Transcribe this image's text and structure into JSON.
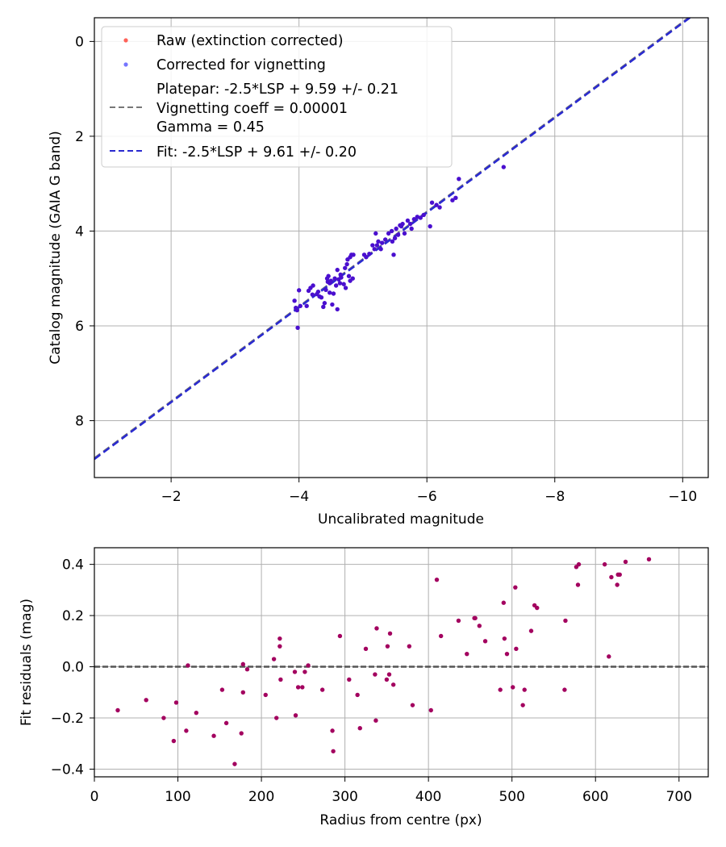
{
  "chart_data": [
    {
      "type": "scatter",
      "xlabel": "Uncalibrated magnitude",
      "ylabel": "Catalog magnitude (GAIA G band)",
      "xlim": [
        -0.8,
        -10.4
      ],
      "ylim": [
        9.2,
        -0.5
      ],
      "xticks": [
        -2,
        -4,
        -6,
        -8,
        -10
      ],
      "xtick_labels": [
        "−2",
        "−4",
        "−6",
        "−8",
        "−10"
      ],
      "yticks": [
        0,
        2,
        4,
        6,
        8
      ],
      "ytick_labels": [
        "0",
        "2",
        "4",
        "6",
        "8"
      ],
      "grid": true,
      "legend_position": "top-left",
      "legend": {
        "raw": "Raw (extinction corrected)",
        "vignetting": "Corrected for vignetting",
        "platepar_line1": "Platepar: -2.5*LSP + 9.59 +/- 0.21",
        "platepar_line2": "Vignetting coeff = 0.00001",
        "platepar_line3": "Gamma = 0.45",
        "fit": "Fit: -2.5*LSP + 9.61 +/- 0.20"
      },
      "series": [
        {
          "name": "Corrected for vignetting",
          "color": "#4a0fcf",
          "points": [
            [
              -3.93,
              5.47
            ],
            [
              -3.95,
              5.62
            ],
            [
              -3.97,
              5.67
            ],
            [
              -3.98,
              6.04
            ],
            [
              -4.0,
              5.25
            ],
            [
              -4.02,
              5.58
            ],
            [
              -4.12,
              5.58
            ],
            [
              -4.15,
              5.26
            ],
            [
              -4.18,
              5.2
            ],
            [
              -4.21,
              5.34
            ],
            [
              -4.22,
              5.15
            ],
            [
              -4.28,
              5.33
            ],
            [
              -4.3,
              5.28
            ],
            [
              -4.32,
              5.38
            ],
            [
              -4.35,
              5.4
            ],
            [
              -4.38,
              5.6
            ],
            [
              -4.4,
              5.52
            ],
            [
              -4.42,
              5.24
            ],
            [
              -4.44,
              5.0
            ],
            [
              -4.45,
              5.07
            ],
            [
              -4.46,
              4.95
            ],
            [
              -4.48,
              5.3
            ],
            [
              -4.48,
              5.1
            ],
            [
              -4.5,
              5.05
            ],
            [
              -4.52,
              5.55
            ],
            [
              -4.54,
              5.32
            ],
            [
              -4.56,
              5.0
            ],
            [
              -4.58,
              5.15
            ],
            [
              -4.6,
              4.82
            ],
            [
              -4.6,
              5.65
            ],
            [
              -4.62,
              5.02
            ],
            [
              -4.64,
              5.1
            ],
            [
              -4.65,
              4.92
            ],
            [
              -4.66,
              4.98
            ],
            [
              -4.7,
              5.12
            ],
            [
              -4.72,
              4.78
            ],
            [
              -4.73,
              5.2
            ],
            [
              -4.75,
              4.7
            ],
            [
              -4.76,
              4.6
            ],
            [
              -4.78,
              4.95
            ],
            [
              -4.8,
              4.55
            ],
            [
              -4.8,
              5.05
            ],
            [
              -4.82,
              4.5
            ],
            [
              -4.84,
              5.0
            ],
            [
              -4.85,
              4.5
            ],
            [
              -5.02,
              4.5
            ],
            [
              -5.05,
              4.55
            ],
            [
              -5.1,
              4.48
            ],
            [
              -5.15,
              4.3
            ],
            [
              -5.18,
              4.38
            ],
            [
              -5.2,
              4.05
            ],
            [
              -5.22,
              4.3
            ],
            [
              -5.24,
              4.22
            ],
            [
              -5.28,
              4.38
            ],
            [
              -5.3,
              4.25
            ],
            [
              -5.35,
              4.18
            ],
            [
              -5.4,
              4.05
            ],
            [
              -5.45,
              4.0
            ],
            [
              -5.46,
              4.22
            ],
            [
              -5.48,
              4.5
            ],
            [
              -5.5,
              4.15
            ],
            [
              -5.52,
              3.95
            ],
            [
              -5.55,
              4.08
            ],
            [
              -5.58,
              3.88
            ],
            [
              -5.6,
              3.9
            ],
            [
              -5.62,
              3.85
            ],
            [
              -5.65,
              4.05
            ],
            [
              -5.7,
              3.78
            ],
            [
              -5.74,
              3.85
            ],
            [
              -5.76,
              3.95
            ],
            [
              -5.8,
              3.75
            ],
            [
              -5.85,
              3.7
            ],
            [
              -5.9,
              3.72
            ],
            [
              -5.95,
              3.66
            ],
            [
              -6.05,
              3.9
            ],
            [
              -6.08,
              3.4
            ],
            [
              -6.15,
              3.45
            ],
            [
              -6.2,
              3.5
            ],
            [
              -6.4,
              3.35
            ],
            [
              -6.45,
              3.3
            ],
            [
              -6.5,
              2.9
            ],
            [
              -7.2,
              2.65
            ]
          ]
        }
      ],
      "lines": [
        {
          "name": "Platepar",
          "slope": 1.0,
          "intercept": 9.59,
          "color": "#777777"
        },
        {
          "name": "Fit",
          "slope": 1.0,
          "intercept": 9.61,
          "color": "#2a2ad0"
        }
      ]
    },
    {
      "type": "scatter",
      "xlabel": "Radius from centre (px)",
      "ylabel": "Fit residuals (mag)",
      "xlim": [
        0,
        735
      ],
      "ylim": [
        -0.43,
        0.465
      ],
      "xticks": [
        0,
        100,
        200,
        300,
        400,
        500,
        600,
        700
      ],
      "xtick_labels": [
        "0",
        "100",
        "200",
        "300",
        "400",
        "500",
        "600",
        "700"
      ],
      "yticks": [
        -0.4,
        -0.2,
        0.0,
        0.2,
        0.4
      ],
      "ytick_labels": [
        "−0.4",
        "−0.2",
        "0.0",
        "0.2",
        "0.4"
      ],
      "grid": true,
      "reference_line": 0.0,
      "series": [
        {
          "name": "Residuals",
          "color": "#a3005f",
          "points": [
            [
              28,
              -0.17
            ],
            [
              62,
              -0.13
            ],
            [
              83,
              -0.2
            ],
            [
              95,
              -0.29
            ],
            [
              98,
              -0.14
            ],
            [
              110,
              -0.25
            ],
            [
              112,
              0.005
            ],
            [
              122,
              -0.18
            ],
            [
              143,
              -0.27
            ],
            [
              153,
              -0.09
            ],
            [
              158,
              -0.22
            ],
            [
              168,
              -0.38
            ],
            [
              176,
              -0.26
            ],
            [
              178,
              0.01
            ],
            [
              178,
              -0.1
            ],
            [
              183,
              -0.01
            ],
            [
              205,
              -0.11
            ],
            [
              215,
              0.03
            ],
            [
              218,
              -0.2
            ],
            [
              222,
              0.11
            ],
            [
              222,
              0.08
            ],
            [
              223,
              -0.05
            ],
            [
              240,
              -0.02
            ],
            [
              241,
              -0.19
            ],
            [
              244,
              -0.08
            ],
            [
              249,
              -0.08
            ],
            [
              252,
              -0.02
            ],
            [
              256,
              0.005
            ],
            [
              273,
              -0.09
            ],
            [
              285,
              -0.25
            ],
            [
              286,
              -0.33
            ],
            [
              294,
              0.12
            ],
            [
              305,
              -0.05
            ],
            [
              315,
              -0.11
            ],
            [
              318,
              -0.24
            ],
            [
              325,
              0.07
            ],
            [
              336,
              -0.03
            ],
            [
              337,
              -0.21
            ],
            [
              338,
              0.15
            ],
            [
              350,
              -0.05
            ],
            [
              351,
              0.08
            ],
            [
              353,
              -0.03
            ],
            [
              354,
              0.13
            ],
            [
              358,
              -0.07
            ],
            [
              377,
              0.08
            ],
            [
              381,
              -0.15
            ],
            [
              403,
              -0.17
            ],
            [
              410,
              0.34
            ],
            [
              415,
              0.12
            ],
            [
              436,
              0.18
            ],
            [
              446,
              0.05
            ],
            [
              455,
              0.19
            ],
            [
              456,
              0.19
            ],
            [
              461,
              0.16
            ],
            [
              468,
              0.1
            ],
            [
              486,
              -0.09
            ],
            [
              490,
              0.25
            ],
            [
              491,
              0.11
            ],
            [
              494,
              0.05
            ],
            [
              501,
              -0.08
            ],
            [
              504,
              0.31
            ],
            [
              505,
              0.07
            ],
            [
              513,
              -0.15
            ],
            [
              515,
              -0.09
            ],
            [
              523,
              0.14
            ],
            [
              527,
              0.24
            ],
            [
              530,
              0.23
            ],
            [
              563,
              -0.09
            ],
            [
              564,
              0.18
            ],
            [
              577,
              0.39
            ],
            [
              579,
              0.32
            ],
            [
              580,
              0.4
            ],
            [
              611,
              0.4
            ],
            [
              616,
              0.04
            ],
            [
              619,
              0.35
            ],
            [
              626,
              0.32
            ],
            [
              627,
              0.36
            ],
            [
              629,
              0.36
            ],
            [
              636,
              0.41
            ],
            [
              664,
              0.42
            ]
          ]
        }
      ]
    }
  ]
}
